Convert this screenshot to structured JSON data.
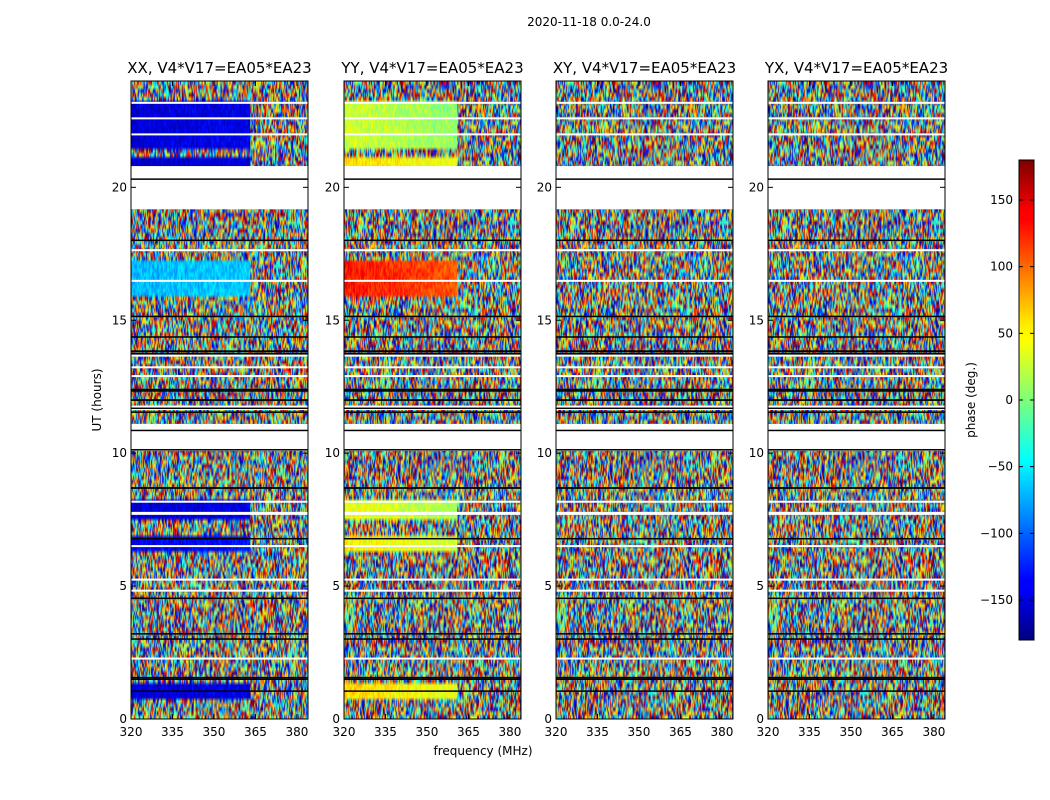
{
  "chart_data": {
    "type": "heatmap",
    "suptitle": "2020-11-18 0.0-24.0",
    "xlabel": "frequency (MHz)",
    "ylabel": "UT (hours)",
    "xlim": [
      320,
      384
    ],
    "ylim": [
      0,
      24
    ],
    "xticks": [
      320,
      335,
      350,
      365,
      380
    ],
    "yticks": [
      0,
      5,
      10,
      15,
      20
    ],
    "colorbar": {
      "label": "phase (deg.)",
      "range": [
        -180,
        180
      ],
      "ticks": [
        -150,
        -100,
        -50,
        0,
        50,
        100,
        150
      ],
      "tick_labels": [
        "−150",
        "−100",
        "−50",
        "0",
        "50",
        "100",
        "150"
      ],
      "colormap": "jet"
    },
    "flagged_hours": [
      [
        19.2,
        20.8
      ],
      [
        10.1,
        11.1
      ]
    ],
    "panels": [
      {
        "title": "XX, V4*V17=EA05*EA23",
        "coherent_bands": [
          {
            "hours": [
              21.4,
              23.2
            ],
            "freq_to": 363,
            "phase": -150
          },
          {
            "hours": [
              19.9,
              21.1
            ],
            "freq_to": 363,
            "phase": -155
          },
          {
            "hours": [
              15.9,
              17.2
            ],
            "freq_to": 363,
            "phase": -70
          },
          {
            "hours": [
              7.5,
              8.2
            ],
            "freq_to": 363,
            "phase": -150
          },
          {
            "hours": [
              6.3,
              6.9
            ],
            "freq_to": 363,
            "phase": -140
          },
          {
            "hours": [
              0.8,
              1.4
            ],
            "freq_to": 363,
            "phase": -150
          }
        ]
      },
      {
        "title": "YY, V4*V17=EA05*EA23",
        "coherent_bands": [
          {
            "hours": [
              21.4,
              23.2
            ],
            "freq_to": 361,
            "phase": 30
          },
          {
            "hours": [
              19.9,
              21.1
            ],
            "freq_to": 361,
            "phase": 60
          },
          {
            "hours": [
              15.9,
              17.2
            ],
            "freq_to": 361,
            "phase": 130
          },
          {
            "hours": [
              7.5,
              8.2
            ],
            "freq_to": 361,
            "phase": 40
          },
          {
            "hours": [
              6.3,
              6.9
            ],
            "freq_to": 361,
            "phase": 50
          },
          {
            "hours": [
              0.8,
              1.4
            ],
            "freq_to": 361,
            "phase": 60
          }
        ]
      },
      {
        "title": "XY, V4*V17=EA05*EA23",
        "coherent_bands": []
      },
      {
        "title": "YX, V4*V17=EA05*EA23",
        "coherent_bands": []
      }
    ]
  }
}
